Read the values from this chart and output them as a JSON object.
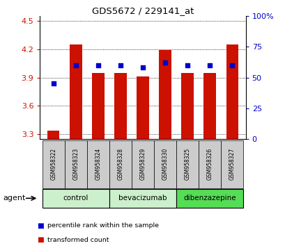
{
  "title": "GDS5672 / 229141_at",
  "samples": [
    "GSM958322",
    "GSM958323",
    "GSM958324",
    "GSM958328",
    "GSM958329",
    "GSM958330",
    "GSM958325",
    "GSM958326",
    "GSM958327"
  ],
  "transformed_counts": [
    3.34,
    4.25,
    3.95,
    3.95,
    3.91,
    4.19,
    3.95,
    3.95,
    4.25
  ],
  "percentile_ranks": [
    45,
    60,
    60,
    60,
    58,
    62,
    60,
    60,
    60
  ],
  "groups": [
    {
      "label": "control",
      "indices": [
        0,
        1,
        2
      ],
      "color": "#ccf0cc"
    },
    {
      "label": "bevacizumab",
      "indices": [
        3,
        4,
        5
      ],
      "color": "#ccf0cc"
    },
    {
      "label": "dibenzazepine",
      "indices": [
        6,
        7,
        8
      ],
      "color": "#55dd55"
    }
  ],
  "ylim_left": [
    3.25,
    4.55
  ],
  "ylim_right": [
    0,
    100
  ],
  "yticks_left": [
    3.3,
    3.6,
    3.9,
    4.2,
    4.5
  ],
  "yticks_right": [
    0,
    25,
    50,
    75,
    100
  ],
  "ytick_labels_right": [
    "0",
    "25",
    "50",
    "75",
    "100%"
  ],
  "bar_color": "#cc1100",
  "dot_color": "#0000cc",
  "bar_width": 0.55,
  "background_color": "#ffffff",
  "grid_color": "#000000",
  "label_color_left": "#cc1100",
  "label_color_right": "#0000cc",
  "legend_items": [
    {
      "color": "#cc1100",
      "label": "transformed count"
    },
    {
      "color": "#0000cc",
      "label": "percentile rank within the sample"
    }
  ],
  "agent_label": "agent",
  "sample_row_color": "#cccccc"
}
